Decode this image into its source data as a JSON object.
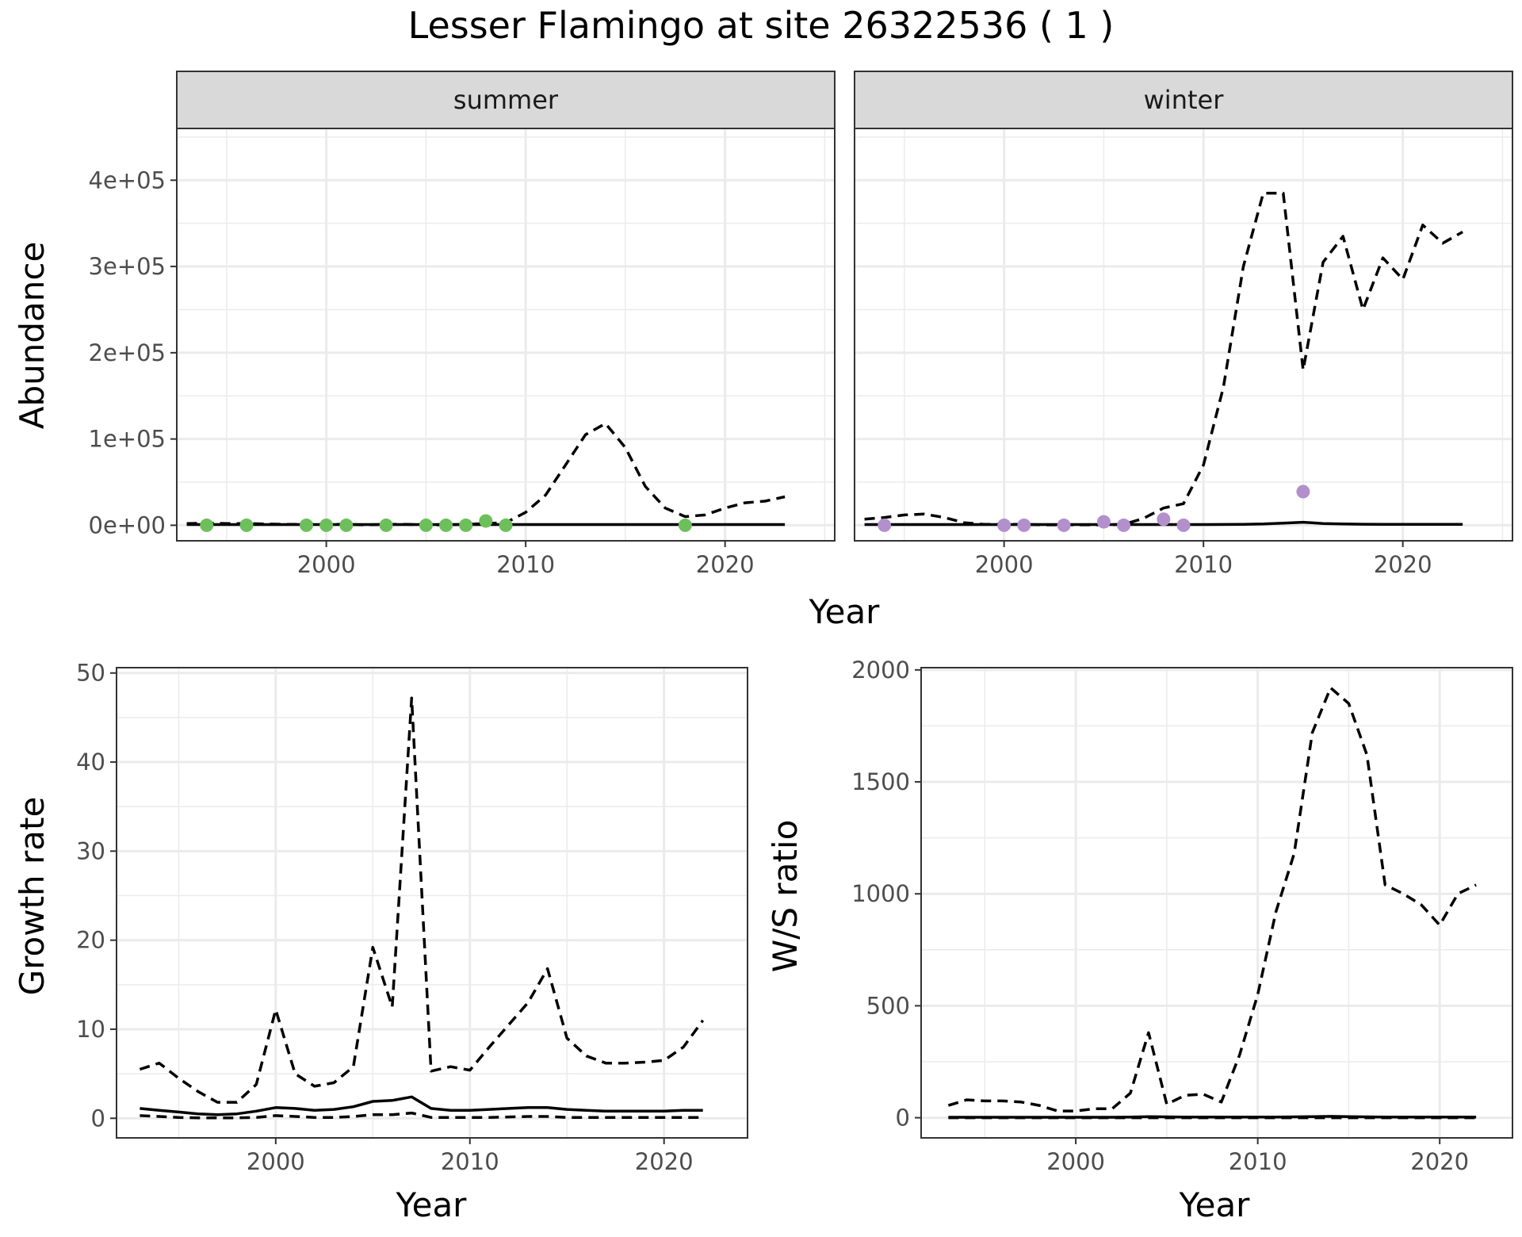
{
  "title": "Lesser Flamingo at site 26322536 ( 1 )",
  "colors": {
    "summer_points": "#6dbf5b",
    "winter_points": "#b38fcc",
    "lines": "#000000",
    "strip_fill": "#d9d9d9"
  },
  "chart_data": [
    {
      "type": "line",
      "facet": "summer",
      "xlabel": "Year",
      "ylabel": "Abundance",
      "xlim": [
        1992.5,
        2025.5
      ],
      "ylim": [
        -18000,
        460000
      ],
      "x_ticks": [
        2000,
        2010,
        2020
      ],
      "x_tick_labels": [
        "2000",
        "2010",
        "2020"
      ],
      "y_ticks": [
        0,
        100000,
        200000,
        300000,
        400000
      ],
      "y_tick_labels": [
        "0e+00",
        "1e+05",
        "2e+05",
        "3e+05",
        "4e+05"
      ],
      "grid": true,
      "series": [
        {
          "style": "solid",
          "x": [
            1993,
            1994,
            1995,
            1996,
            1997,
            1998,
            1999,
            2000,
            2001,
            2002,
            2003,
            2004,
            2005,
            2006,
            2007,
            2008,
            2009,
            2010,
            2011,
            2012,
            2013,
            2014,
            2015,
            2016,
            2017,
            2018,
            2019,
            2020,
            2021,
            2022,
            2023
          ],
          "y": [
            800,
            800,
            800,
            800,
            800,
            800,
            800,
            800,
            800,
            800,
            800,
            800,
            800,
            800,
            800,
            800,
            800,
            800,
            800,
            800,
            800,
            800,
            800,
            800,
            800,
            800,
            800,
            800,
            800,
            800,
            800
          ]
        },
        {
          "style": "dashed",
          "x": [
            1993,
            1994,
            1995,
            1996,
            1997,
            1998,
            1999,
            2000,
            2001,
            2002,
            2003,
            2004,
            2005,
            2006,
            2007,
            2008,
            2009,
            2010,
            2011,
            2012,
            2013,
            2014,
            2015,
            2016,
            2017,
            2018,
            2019,
            2020,
            2021,
            2022,
            2023
          ],
          "y": [
            2000,
            2500,
            2000,
            2000,
            1500,
            1000,
            1000,
            1000,
            1000,
            500,
            1000,
            1000,
            500,
            500,
            1000,
            2000,
            3000,
            15000,
            35000,
            70000,
            105000,
            118000,
            90000,
            45000,
            20000,
            10000,
            12000,
            20000,
            26000,
            28000,
            33000
          ]
        }
      ],
      "points": {
        "x": [
          1994,
          1996,
          1999,
          2000,
          2001,
          2003,
          2005,
          2006,
          2007,
          2008,
          2009,
          2018
        ],
        "y": [
          0,
          0,
          0,
          0,
          0,
          0,
          0,
          0,
          0,
          5000,
          0,
          0
        ]
      }
    },
    {
      "type": "line",
      "facet": "winter",
      "xlabel": "Year",
      "ylabel": "Abundance",
      "xlim": [
        1992.5,
        2025.5
      ],
      "ylim": [
        -18000,
        460000
      ],
      "x_ticks": [
        2000,
        2010,
        2020
      ],
      "x_tick_labels": [
        "2000",
        "2010",
        "2020"
      ],
      "y_ticks": [
        0,
        100000,
        200000,
        300000,
        400000
      ],
      "grid": true,
      "series": [
        {
          "style": "solid",
          "x": [
            1993,
            1994,
            1995,
            1996,
            1997,
            1998,
            1999,
            2000,
            2001,
            2002,
            2003,
            2004,
            2005,
            2006,
            2007,
            2008,
            2009,
            2010,
            2011,
            2012,
            2013,
            2014,
            2015,
            2016,
            2017,
            2018,
            2019,
            2020,
            2021,
            2022,
            2023
          ],
          "y": [
            800,
            800,
            800,
            800,
            800,
            800,
            800,
            800,
            800,
            800,
            800,
            800,
            800,
            800,
            800,
            800,
            800,
            800,
            900,
            1000,
            1500,
            2500,
            3500,
            2000,
            1500,
            1200,
            1000,
            1000,
            1000,
            1000,
            1000
          ]
        },
        {
          "style": "dashed",
          "x": [
            1993,
            1994,
            1995,
            1996,
            1997,
            1998,
            1999,
            2000,
            2001,
            2002,
            2003,
            2004,
            2005,
            2006,
            2007,
            2008,
            2009,
            2010,
            2011,
            2012,
            2013,
            2014,
            2015,
            2016,
            2017,
            2018,
            2019,
            2020,
            2021,
            2022,
            2023
          ],
          "y": [
            7000,
            9000,
            12000,
            13000,
            9000,
            3000,
            1000,
            1000,
            1000,
            500,
            500,
            500,
            500,
            1000,
            8000,
            20000,
            25000,
            70000,
            160000,
            300000,
            385000,
            385000,
            180000,
            305000,
            335000,
            250000,
            310000,
            285000,
            348000,
            327000,
            340000
          ]
        }
      ],
      "points": {
        "x": [
          1994,
          2000,
          2001,
          2003,
          2005,
          2006,
          2008,
          2009,
          2015
        ],
        "y": [
          0,
          0,
          0,
          0,
          4000,
          0,
          7000,
          0,
          39000
        ]
      }
    },
    {
      "type": "line",
      "xlabel": "Year",
      "ylabel": "Growth rate",
      "xlim": [
        1991.8,
        2024.3
      ],
      "ylim": [
        -2.2,
        50.6
      ],
      "x_ticks": [
        2000,
        2010,
        2020
      ],
      "x_tick_labels": [
        "2000",
        "2010",
        "2020"
      ],
      "y_ticks": [
        0,
        10,
        20,
        30,
        40,
        50
      ],
      "y_tick_labels": [
        "0",
        "10",
        "20",
        "30",
        "40",
        "50"
      ],
      "grid": true,
      "series": [
        {
          "style": "solid",
          "x": [
            1993,
            1994,
            1995,
            1996,
            1997,
            1998,
            1999,
            2000,
            2001,
            2002,
            2003,
            2004,
            2005,
            2006,
            2007,
            2008,
            2009,
            2010,
            2011,
            2012,
            2013,
            2014,
            2015,
            2016,
            2017,
            2018,
            2019,
            2020,
            2021,
            2022
          ],
          "y": [
            1.1,
            0.9,
            0.7,
            0.5,
            0.4,
            0.5,
            0.8,
            1.2,
            1.1,
            0.9,
            1.0,
            1.3,
            1.9,
            2.0,
            2.4,
            1.1,
            0.9,
            0.9,
            1.0,
            1.1,
            1.2,
            1.2,
            1.0,
            0.9,
            0.8,
            0.8,
            0.8,
            0.8,
            0.9,
            0.9
          ]
        },
        {
          "style": "dashed",
          "x": [
            1993,
            1994,
            1995,
            1996,
            1997,
            1998,
            1999,
            2000,
            2001,
            2002,
            2003,
            2004,
            2005,
            2006,
            2007,
            2008,
            2009,
            2010,
            2011,
            2012,
            2013,
            2014,
            2015,
            2016,
            2017,
            2018,
            2019,
            2020,
            2021,
            2022
          ],
          "y": [
            5.5,
            6.2,
            4.5,
            3.0,
            1.8,
            1.8,
            3.8,
            12.2,
            5.0,
            3.6,
            4.0,
            5.8,
            19.2,
            12.5,
            47.2,
            5.3,
            5.8,
            5.4,
            8.0,
            10.5,
            13.0,
            16.8,
            9.0,
            7.0,
            6.2,
            6.2,
            6.3,
            6.5,
            8.0,
            11.0
          ]
        },
        {
          "style": "dashed",
          "x": [
            1993,
            1994,
            1995,
            1996,
            1997,
            1998,
            1999,
            2000,
            2001,
            2002,
            2003,
            2004,
            2005,
            2006,
            2007,
            2008,
            2009,
            2010,
            2011,
            2012,
            2013,
            2014,
            2015,
            2016,
            2017,
            2018,
            2019,
            2020,
            2021,
            2022
          ],
          "y": [
            0.3,
            0.2,
            0.1,
            0.05,
            0.05,
            0.05,
            0.1,
            0.3,
            0.2,
            0.1,
            0.1,
            0.2,
            0.4,
            0.4,
            0.6,
            0.1,
            0.1,
            0.1,
            0.1,
            0.15,
            0.2,
            0.2,
            0.1,
            0.1,
            0.1,
            0.1,
            0.1,
            0.1,
            0.1,
            0.1
          ]
        }
      ]
    },
    {
      "type": "line",
      "xlabel": "Year",
      "ylabel": "W/S ratio",
      "xlim": [
        1991.5,
        2024.0
      ],
      "ylim": [
        -90,
        2010
      ],
      "x_ticks": [
        2000,
        2010,
        2020
      ],
      "x_tick_labels": [
        "2000",
        "2010",
        "2020"
      ],
      "y_ticks": [
        0,
        500,
        1000,
        1500,
        2000
      ],
      "y_tick_labels": [
        "0",
        "500",
        "1000",
        "1500",
        "2000"
      ],
      "grid": true,
      "series": [
        {
          "style": "solid",
          "x": [
            1993,
            1994,
            1995,
            1996,
            1997,
            1998,
            1999,
            2000,
            2001,
            2002,
            2003,
            2004,
            2005,
            2006,
            2007,
            2008,
            2009,
            2010,
            2011,
            2012,
            2013,
            2014,
            2015,
            2016,
            2017,
            2018,
            2019,
            2020,
            2021,
            2022
          ],
          "y": [
            2,
            2,
            2,
            2,
            2,
            2,
            2,
            2,
            2,
            2,
            3,
            5,
            4,
            3,
            3,
            3,
            3,
            3,
            3,
            4,
            5,
            6,
            5,
            4,
            3,
            3,
            3,
            3,
            3,
            3
          ]
        },
        {
          "style": "dashed",
          "x": [
            1993,
            1994,
            1995,
            1996,
            1997,
            1998,
            1999,
            2000,
            2001,
            2002,
            2003,
            2004,
            2005,
            2006,
            2007,
            2008,
            2009,
            2010,
            2011,
            2012,
            2013,
            2014,
            2015,
            2016,
            2017,
            2018,
            2019,
            2020,
            2021,
            2022
          ],
          "y": [
            55,
            80,
            75,
            75,
            70,
            55,
            30,
            30,
            40,
            40,
            110,
            380,
            60,
            100,
            105,
            70,
            280,
            550,
            920,
            1180,
            1720,
            1920,
            1850,
            1620,
            1040,
            1000,
            950,
            860,
            1000,
            1040
          ]
        },
        {
          "style": "dashed",
          "x": [
            1993,
            1994,
            1995,
            1996,
            1997,
            1998,
            1999,
            2000,
            2001,
            2002,
            2003,
            2004,
            2005,
            2006,
            2007,
            2008,
            2009,
            2010,
            2011,
            2012,
            2013,
            2014,
            2015,
            2016,
            2017,
            2018,
            2019,
            2020,
            2021,
            2022
          ],
          "y": [
            0,
            0,
            0,
            0,
            0,
            0,
            0,
            0,
            0,
            0,
            0,
            0,
            0,
            0,
            0,
            0,
            0,
            0,
            0,
            0,
            0,
            0,
            0,
            0,
            0,
            0,
            0,
            0,
            0,
            0
          ]
        }
      ]
    }
  ]
}
